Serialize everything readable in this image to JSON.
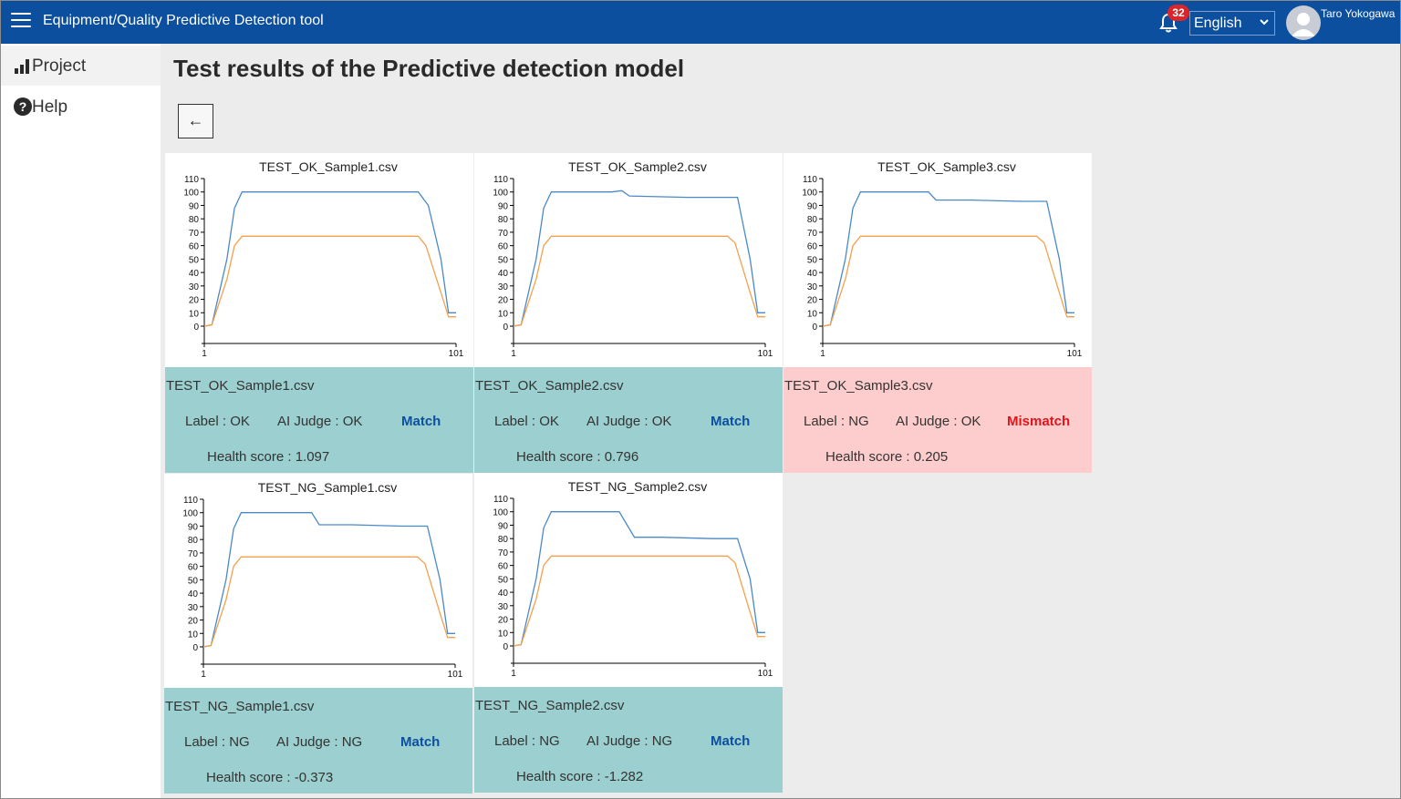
{
  "header": {
    "app_title": "Equipment/Quality Predictive Detection tool",
    "notification_count": "32",
    "language": "English",
    "user_name": "Taro Yokogawa",
    "bar_color": "#0b4f9e"
  },
  "sidebar": {
    "items": [
      {
        "label": "Project",
        "icon": "bar-chart-icon"
      },
      {
        "label": "Help",
        "icon": "help-circle-icon"
      }
    ]
  },
  "main": {
    "title": "Test results of the Predictive detection model",
    "back_label": "←"
  },
  "colors": {
    "match_bg": "#9ccfcf",
    "mismatch_bg": "#fdcdcd",
    "match_text": "#0b4f9e",
    "mismatch_text": "#e0141b",
    "series1": "#4a89c8",
    "series2": "#f5a04c"
  },
  "results": [
    {
      "file": "TEST_OK_Sample1.csv",
      "label": "Label : OK",
      "ai_judge": "AI Judge : OK",
      "result": "Match",
      "health_score": "Health score : 1.097"
    },
    {
      "file": "TEST_OK_Sample2.csv",
      "label": "Label : OK",
      "ai_judge": "AI Judge : OK",
      "result": "Match",
      "health_score": "Health score : 0.796"
    },
    {
      "file": "TEST_OK_Sample3.csv",
      "label": "Label : NG",
      "ai_judge": "AI Judge : OK",
      "result": "Mismatch",
      "health_score": "Health score : 0.205"
    },
    {
      "file": "TEST_NG_Sample1.csv",
      "label": "Label : NG",
      "ai_judge": "AI Judge : NG",
      "result": "Match",
      "health_score": "Health score : -0.373"
    },
    {
      "file": "TEST_NG_Sample2.csv",
      "label": "Label : NG",
      "ai_judge": "AI Judge : NG",
      "result": "Match",
      "health_score": "Health score : -1.282"
    }
  ],
  "chart_data": [
    {
      "type": "line",
      "title": "TEST_OK_Sample1.csv",
      "xlim": [
        1,
        101
      ],
      "ylim": [
        0,
        110
      ],
      "x_ticks": [
        "1",
        "101"
      ],
      "y_ticks": [
        "110",
        "100",
        "90",
        "80",
        "70",
        "60",
        "50",
        "40",
        "30",
        "20",
        "10",
        "0"
      ],
      "series": [
        {
          "color": "#4a89c8",
          "points": [
            [
              1,
              0
            ],
            [
              4,
              1
            ],
            [
              10,
              50
            ],
            [
              13,
              88
            ],
            [
              16,
              100
            ],
            [
              30,
              100
            ],
            [
              50,
              100
            ],
            [
              70,
              100
            ],
            [
              86,
              100
            ],
            [
              90,
              90
            ],
            [
              95,
              50
            ],
            [
              98,
              10
            ],
            [
              101,
              10
            ]
          ]
        },
        {
          "color": "#f5a04c",
          "points": [
            [
              1,
              0
            ],
            [
              4,
              1
            ],
            [
              10,
              35
            ],
            [
              13,
              60
            ],
            [
              16,
              67
            ],
            [
              30,
              67
            ],
            [
              50,
              67
            ],
            [
              70,
              67
            ],
            [
              86,
              67
            ],
            [
              89,
              60
            ],
            [
              95,
              25
            ],
            [
              98,
              7
            ],
            [
              101,
              7
            ]
          ]
        }
      ]
    },
    {
      "type": "line",
      "title": "TEST_OK_Sample2.csv",
      "xlim": [
        1,
        101
      ],
      "ylim": [
        0,
        110
      ],
      "x_ticks": [
        "1",
        "101"
      ],
      "y_ticks": [
        "110",
        "100",
        "90",
        "80",
        "70",
        "60",
        "50",
        "40",
        "30",
        "20",
        "10",
        "0"
      ],
      "series": [
        {
          "color": "#4a89c8",
          "points": [
            [
              1,
              0
            ],
            [
              4,
              1
            ],
            [
              10,
              50
            ],
            [
              13,
              88
            ],
            [
              16,
              100
            ],
            [
              40,
              100
            ],
            [
              44,
              101
            ],
            [
              47,
              97
            ],
            [
              70,
              96
            ],
            [
              90,
              96
            ],
            [
              95,
              50
            ],
            [
              98,
              10
            ],
            [
              101,
              10
            ]
          ]
        },
        {
          "color": "#f5a04c",
          "points": [
            [
              1,
              0
            ],
            [
              4,
              1
            ],
            [
              10,
              35
            ],
            [
              13,
              60
            ],
            [
              16,
              67
            ],
            [
              40,
              67
            ],
            [
              60,
              67
            ],
            [
              86,
              67
            ],
            [
              89,
              62
            ],
            [
              95,
              25
            ],
            [
              98,
              7
            ],
            [
              101,
              7
            ]
          ]
        }
      ]
    },
    {
      "type": "line",
      "title": "TEST_OK_Sample3.csv",
      "xlim": [
        1,
        101
      ],
      "ylim": [
        0,
        110
      ],
      "x_ticks": [
        "1",
        "101"
      ],
      "y_ticks": [
        "110",
        "100",
        "90",
        "80",
        "70",
        "60",
        "50",
        "40",
        "30",
        "20",
        "10",
        "0"
      ],
      "series": [
        {
          "color": "#4a89c8",
          "points": [
            [
              1,
              0
            ],
            [
              4,
              1
            ],
            [
              10,
              50
            ],
            [
              13,
              88
            ],
            [
              16,
              100
            ],
            [
              30,
              100
            ],
            [
              43,
              100
            ],
            [
              46,
              94
            ],
            [
              60,
              94
            ],
            [
              80,
              93
            ],
            [
              90,
              93
            ],
            [
              95,
              50
            ],
            [
              98,
              10
            ],
            [
              101,
              10
            ]
          ]
        },
        {
          "color": "#f5a04c",
          "points": [
            [
              1,
              0
            ],
            [
              4,
              1
            ],
            [
              10,
              35
            ],
            [
              13,
              60
            ],
            [
              16,
              67
            ],
            [
              40,
              67
            ],
            [
              60,
              67
            ],
            [
              86,
              67
            ],
            [
              89,
              62
            ],
            [
              95,
              25
            ],
            [
              98,
              7
            ],
            [
              101,
              7
            ]
          ]
        }
      ]
    },
    {
      "type": "line",
      "title": "TEST_NG_Sample1.csv",
      "xlim": [
        1,
        101
      ],
      "ylim": [
        0,
        110
      ],
      "x_ticks": [
        "1",
        "101"
      ],
      "y_ticks": [
        "110",
        "100",
        "90",
        "80",
        "70",
        "60",
        "50",
        "40",
        "30",
        "20",
        "10",
        "0"
      ],
      "series": [
        {
          "color": "#4a89c8",
          "points": [
            [
              1,
              0
            ],
            [
              4,
              1
            ],
            [
              10,
              50
            ],
            [
              13,
              88
            ],
            [
              16,
              100
            ],
            [
              30,
              100
            ],
            [
              44,
              100
            ],
            [
              47,
              91
            ],
            [
              60,
              91
            ],
            [
              80,
              90
            ],
            [
              90,
              90
            ],
            [
              95,
              50
            ],
            [
              98,
              10
            ],
            [
              101,
              10
            ]
          ]
        },
        {
          "color": "#f5a04c",
          "points": [
            [
              1,
              0
            ],
            [
              4,
              1
            ],
            [
              10,
              35
            ],
            [
              13,
              60
            ],
            [
              16,
              67
            ],
            [
              40,
              67
            ],
            [
              60,
              67
            ],
            [
              86,
              67
            ],
            [
              89,
              62
            ],
            [
              95,
              25
            ],
            [
              98,
              7
            ],
            [
              101,
              7
            ]
          ]
        }
      ]
    },
    {
      "type": "line",
      "title": "TEST_NG_Sample2.csv",
      "xlim": [
        1,
        101
      ],
      "ylim": [
        0,
        110
      ],
      "x_ticks": [
        "1",
        "101"
      ],
      "y_ticks": [
        "110",
        "100",
        "90",
        "80",
        "70",
        "60",
        "50",
        "40",
        "30",
        "20",
        "10",
        "0"
      ],
      "series": [
        {
          "color": "#4a89c8",
          "points": [
            [
              1,
              0
            ],
            [
              4,
              1
            ],
            [
              10,
              50
            ],
            [
              13,
              88
            ],
            [
              16,
              100
            ],
            [
              30,
              100
            ],
            [
              43,
              100
            ],
            [
              49,
              81
            ],
            [
              60,
              81
            ],
            [
              80,
              80
            ],
            [
              90,
              80
            ],
            [
              95,
              50
            ],
            [
              98,
              10
            ],
            [
              101,
              10
            ]
          ]
        },
        {
          "color": "#f5a04c",
          "points": [
            [
              1,
              0
            ],
            [
              4,
              1
            ],
            [
              10,
              35
            ],
            [
              13,
              60
            ],
            [
              16,
              67
            ],
            [
              40,
              67
            ],
            [
              60,
              67
            ],
            [
              86,
              67
            ],
            [
              89,
              62
            ],
            [
              95,
              25
            ],
            [
              98,
              7
            ],
            [
              101,
              7
            ]
          ]
        }
      ]
    }
  ]
}
